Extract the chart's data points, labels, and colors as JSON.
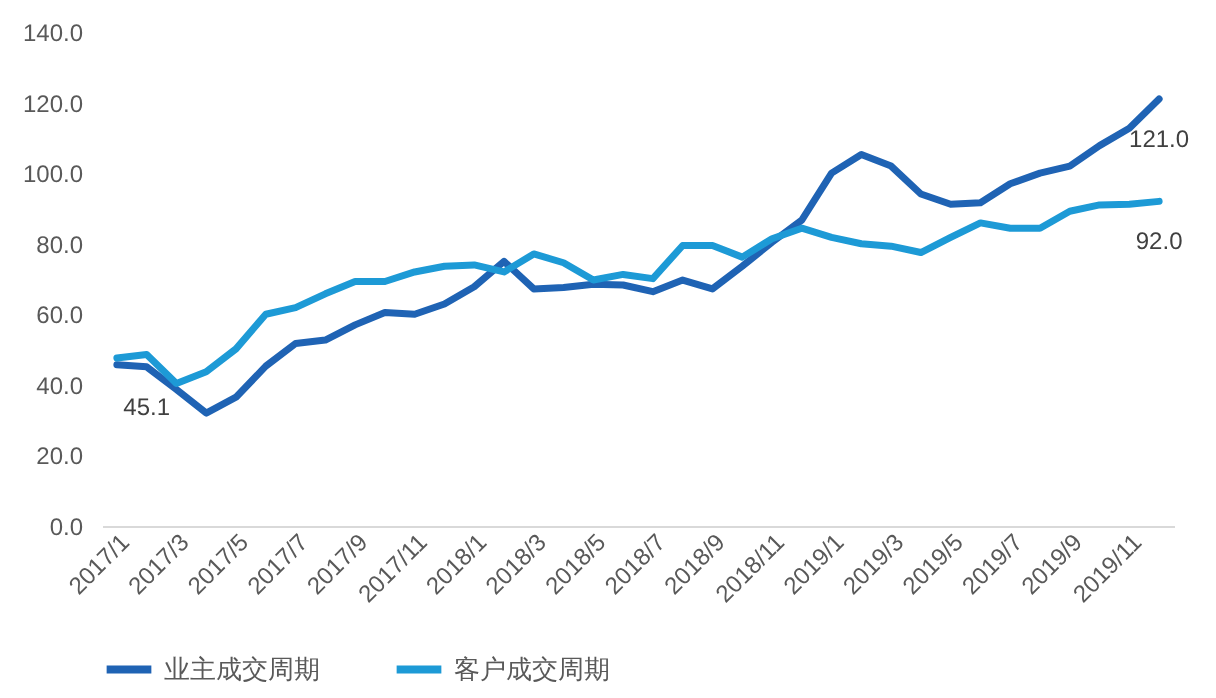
{
  "chart_data": {
    "type": "line",
    "categories": [
      "2017/1",
      null,
      "2017/3",
      null,
      "2017/5",
      null,
      "2017/7",
      null,
      "2017/9",
      null,
      "2017/11",
      null,
      "2018/1",
      null,
      "2018/3",
      null,
      "2018/5",
      null,
      "2018/7",
      null,
      "2018/9",
      null,
      "2018/11",
      null,
      "2019/1",
      null,
      "2019/3",
      null,
      "2019/5",
      null,
      "2019/7",
      null,
      "2019/9",
      null,
      "2019/11",
      null
    ],
    "series": [
      {
        "name": "业主成交周期",
        "color": "#1f63b4",
        "values": [
          45.7,
          45.1,
          38.7,
          32,
          36.5,
          45.3,
          51.7,
          52.7,
          57,
          60.5,
          60,
          62.9,
          67.8,
          75,
          67.2,
          67.6,
          68.5,
          68.3,
          66.4,
          69.7,
          67.2,
          73.6,
          80.4,
          86.7,
          100,
          105.3,
          102,
          94.1,
          91.2,
          91.6,
          97,
          100,
          102,
          107.8,
          112.7,
          121
        ],
        "value_labels": [
          null,
          "45.1",
          null,
          null,
          null,
          null,
          null,
          null,
          null,
          null,
          null,
          null,
          null,
          null,
          null,
          null,
          null,
          null,
          null,
          null,
          null,
          null,
          null,
          null,
          null,
          null,
          null,
          null,
          null,
          null,
          null,
          null,
          null,
          null,
          null,
          "121.0"
        ]
      },
      {
        "name": "客户成交周期",
        "color": "#1d9ad6",
        "values": [
          47.6,
          48.6,
          40.4,
          43.7,
          50.2,
          60,
          61.9,
          65.8,
          69.3,
          69.3,
          72,
          73.6,
          74,
          72,
          77.1,
          74.6,
          69.7,
          71.3,
          70.1,
          79.5,
          79.5,
          76.2,
          81.4,
          84.4,
          81.8,
          80,
          79.3,
          77.5,
          81.8,
          85.9,
          84.4,
          84.4,
          89.2,
          91,
          91.2,
          92
        ],
        "value_labels": [
          null,
          null,
          null,
          null,
          null,
          null,
          null,
          null,
          null,
          null,
          null,
          null,
          null,
          null,
          null,
          null,
          null,
          null,
          null,
          null,
          null,
          null,
          null,
          null,
          null,
          null,
          null,
          null,
          null,
          null,
          null,
          null,
          null,
          null,
          null,
          "92.0"
        ]
      }
    ],
    "ylim": [
      0,
      140
    ],
    "yticks": [
      {
        "value": 0,
        "label": "0.0"
      },
      {
        "value": 20,
        "label": "20.0"
      },
      {
        "value": 40,
        "label": "40.0"
      },
      {
        "value": 60,
        "label": "60.0"
      },
      {
        "value": 80,
        "label": "80.0"
      },
      {
        "value": 100,
        "label": "100.0"
      },
      {
        "value": 120,
        "label": "120.0"
      },
      {
        "value": 140,
        "label": "140.0"
      }
    ],
    "grid": false,
    "legend": "bottom",
    "marker": "none",
    "line_style": "solid"
  }
}
